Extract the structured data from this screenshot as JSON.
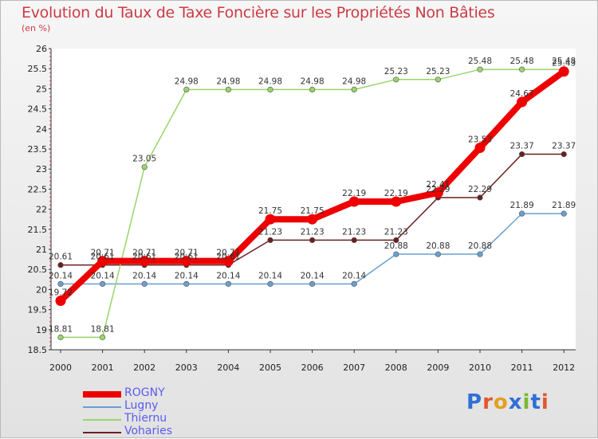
{
  "title": "Evolution du Taux de Taxe Foncière sur les Propriétés Non Bâties",
  "unit_label": "(en %)",
  "logo": {
    "text": "Proxiti",
    "letter_colors": [
      "#2f6fd6",
      "#e0562f",
      "#e0a020",
      "#2f6fd6",
      "#7ab830",
      "#2f6fd6",
      "#e0562f"
    ]
  },
  "chart_data": {
    "type": "line",
    "title": "Evolution du Taux de Taxe Foncière sur les Propriétés Non Bâties",
    "ylabel": "(en %)",
    "xlabel": "",
    "ylim": [
      18.5,
      26
    ],
    "ytick_labels": [
      "18.5",
      "19",
      "19.5",
      "20",
      "20.5",
      "21",
      "21.5",
      "22",
      "22.5",
      "23",
      "23.5",
      "24",
      "24.5",
      "25",
      "25.5",
      "26"
    ],
    "categories": [
      "2000",
      "2001",
      "2002",
      "2003",
      "2004",
      "2005",
      "2006",
      "2007",
      "2008",
      "2009",
      "2010",
      "2011",
      "2012"
    ],
    "series": [
      {
        "name": "Voharies",
        "color": "#6b1f1f",
        "values": [
          20.61,
          20.61,
          20.61,
          20.61,
          20.61,
          21.23,
          21.23,
          21.23,
          21.23,
          22.29,
          22.29,
          23.37,
          23.37
        ],
        "labels": [
          "20.61",
          "20.61",
          "20.61",
          "20.61",
          "20.61",
          "21.23",
          "21.23",
          "21.23",
          "21.23",
          "22.29",
          "22.29",
          "23.37",
          "23.37"
        ]
      },
      {
        "name": "Lugny",
        "color": "#6a9fd0",
        "values": [
          20.14,
          20.14,
          20.14,
          20.14,
          20.14,
          20.14,
          20.14,
          20.14,
          20.88,
          20.88,
          20.88,
          21.89,
          21.89
        ],
        "labels": [
          "20.14",
          "20.14",
          "20.14",
          "20.14",
          "20.14",
          "20.14",
          "20.14",
          "20.14",
          "20.88",
          "20.88",
          "20.88",
          "21.89",
          "21.89"
        ]
      },
      {
        "name": "Thiernu",
        "color": "#9ad46a",
        "values": [
          18.81,
          18.81,
          23.05,
          24.98,
          24.98,
          24.98,
          24.98,
          24.98,
          25.23,
          25.23,
          25.48,
          25.48,
          25.48
        ],
        "labels": [
          "18.81",
          "18.81",
          "23.05",
          "24.98",
          "24.98",
          "24.98",
          "24.98",
          "24.98",
          "25.23",
          "25.23",
          "25.48",
          "25.48",
          "25.48"
        ]
      },
      {
        "name": "ROGNY",
        "color": "#ee0000",
        "values": [
          19.72,
          20.71,
          20.71,
          20.71,
          20.71,
          21.75,
          21.75,
          22.19,
          22.19,
          22.41,
          23.53,
          24.67,
          25.43
        ],
        "labels": [
          "19.72",
          "20.71",
          "20.71",
          "20.71",
          "20.71",
          "21.75",
          "21.75",
          "22.19",
          "22.19",
          "22.41",
          "23.53",
          "24.67",
          "25.43"
        ]
      }
    ],
    "legend": [
      "ROGNY",
      "Lugny",
      "Thiernu",
      "Voharies"
    ],
    "legend_position": "bottom-left",
    "grid": false
  }
}
